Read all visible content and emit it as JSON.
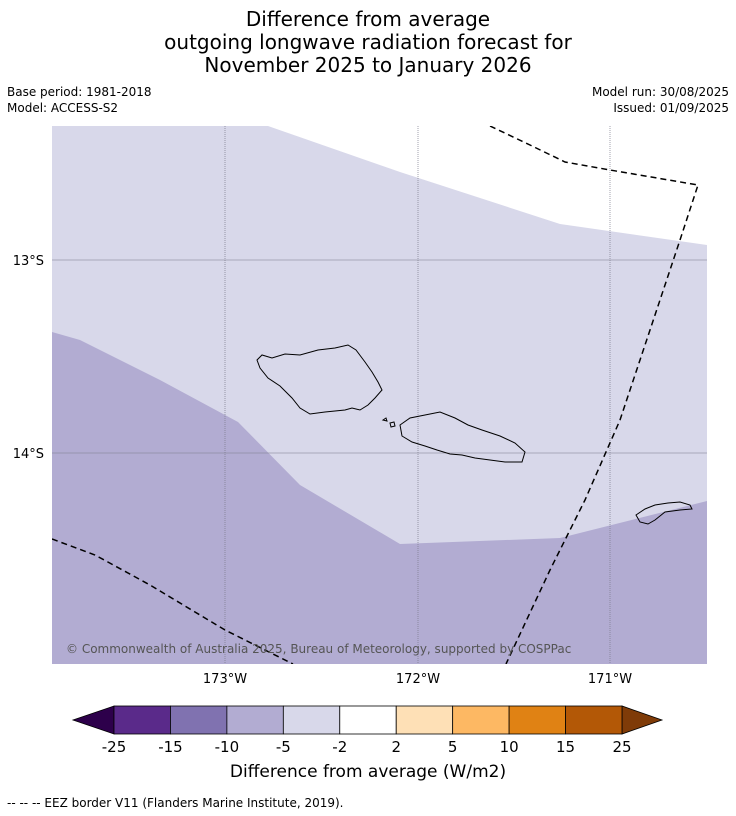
{
  "title_lines": [
    "Difference from average",
    "outgoing longwave radiation forecast for",
    "November 2025 to January 2026"
  ],
  "meta_left": [
    "Base period: 1981-2018",
    "Model: ACCESS-S2"
  ],
  "meta_right": [
    "Model run: 30/08/2025",
    "Issued: 01/09/2025"
  ],
  "map": {
    "lat_labels": [
      "13°S",
      "14°S"
    ],
    "lon_labels": [
      "173°W",
      "172°W",
      "171°W"
    ],
    "copyright": "© Commonwealth of Australia 2025, Bureau of Meteorology, supported by COSPPac",
    "colors": {
      "light": "#d8d8ea",
      "mid": "#b2acd2",
      "grid": "#7a7a8a",
      "coast": "#000000"
    }
  },
  "colorbar": {
    "ticks": [
      "-25",
      "-15",
      "-10",
      "-5",
      "-2",
      "2",
      "5",
      "10",
      "15",
      "25"
    ],
    "colors": [
      "#5a2a8a",
      "#8072b0",
      "#b2acd2",
      "#d8d8ea",
      "#ffffff",
      "#fee0b6",
      "#fdb863",
      "#e08214",
      "#b35806"
    ],
    "under_color": "#2d004b",
    "over_color": "#7f3b08",
    "label": "Difference from average (W/m2)"
  },
  "footer": "--  --  -- EEZ border V11 (Flanders Marine Institute, 2019)."
}
